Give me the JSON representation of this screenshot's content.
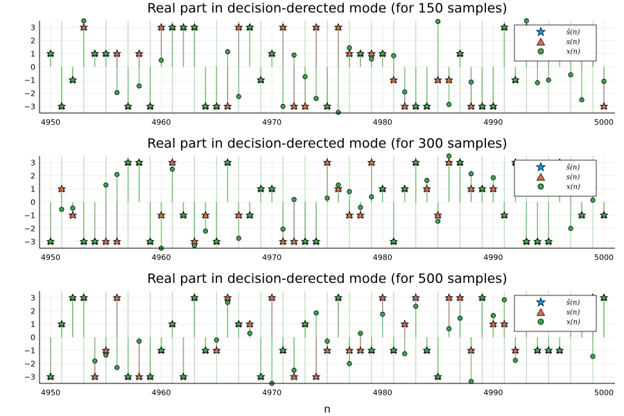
{
  "colors": {
    "s_hat": "#009AFA",
    "s": "#E26F46",
    "x": "#3EA44E",
    "stem_s": "#A08080",
    "stem_x": "#7CBF7C"
  },
  "marker_shapes": {
    "s_hat": "star",
    "s": "triangle",
    "x": "circle"
  },
  "chart_data": [
    {
      "type": "scatter",
      "title": "Real part in decision-derected mode (for 150 samples)",
      "xlabel": "",
      "xlim": [
        4949,
        5001
      ],
      "ylim": [
        -3.5,
        3.5
      ],
      "x_ticks": [
        4950,
        4960,
        4970,
        4980,
        4990,
        5000
      ],
      "x_tick_labels": [
        "4950",
        "4960",
        "4970",
        "4980",
        "4990",
        "5000"
      ],
      "y_ticks": [
        -3,
        -2,
        -1,
        0,
        1,
        2,
        3
      ],
      "y_tick_labels": [
        "−3",
        "−2",
        "−1",
        "0",
        "1",
        "2",
        "3"
      ],
      "grid": true,
      "legend_position": "top-right",
      "legend": [
        "ŝ(n)",
        "s(n)",
        "x(n)"
      ],
      "x": [
        4950,
        4951,
        4952,
        4953,
        4954,
        4955,
        4956,
        4957,
        4958,
        4959,
        4960,
        4961,
        4962,
        4963,
        4964,
        4965,
        4966,
        4967,
        4968,
        4969,
        4970,
        4971,
        4972,
        4973,
        4974,
        4975,
        4976,
        4977,
        4978,
        4979,
        4980,
        4981,
        4982,
        4983,
        4984,
        4985,
        4986,
        4987,
        4988,
        4989,
        4990,
        4991,
        4992,
        4993,
        4994,
        4995,
        4996,
        4997,
        4998,
        4999,
        5000
      ],
      "series": [
        {
          "name": "ŝ(n)",
          "values": [
            1,
            -3,
            -1,
            3,
            1,
            1,
            1,
            -3,
            1,
            -3,
            3,
            3,
            3,
            3,
            -3,
            -3,
            -3,
            3,
            3,
            -1,
            1,
            3,
            -3,
            -3,
            3,
            -3,
            3,
            1,
            1,
            1,
            1,
            -1,
            -3,
            -3,
            -3,
            -1,
            -1,
            1,
            -3,
            -3,
            -3,
            3,
            -1,
            3,
            1,
            1,
            1,
            1,
            1,
            1,
            -3
          ]
        },
        {
          "name": "s(n)",
          "values": [
            1,
            -3,
            -1,
            3,
            1,
            1,
            1,
            -3,
            1,
            -3,
            3,
            3,
            3,
            3,
            -3,
            -3,
            -3,
            3,
            3,
            -1,
            1,
            3,
            -3,
            -3,
            3,
            -3,
            3,
            1,
            1,
            1,
            1,
            -1,
            -3,
            -3,
            -3,
            -1,
            -1,
            1,
            -3,
            -3,
            -3,
            3,
            -1,
            3,
            1,
            1,
            1,
            1,
            1,
            1,
            -3
          ]
        },
        {
          "name": "x(n)",
          "values": [
            1.0,
            -3.0,
            -1.0,
            3.5,
            1.0,
            1.0,
            -1.95,
            -3.0,
            -1.45,
            -3.0,
            0.5,
            3.0,
            3.0,
            3.0,
            -3.0,
            -3.0,
            1.15,
            -2.25,
            3.0,
            -1.0,
            1.0,
            -3.0,
            0.9,
            -0.75,
            -2.4,
            -3.0,
            -3.45,
            1.45,
            1.0,
            0.6,
            1.0,
            0.85,
            -1.9,
            -3.0,
            -3.0,
            3.45,
            -2.85,
            1.0,
            -1.15,
            -3.0,
            -3.0,
            3.0,
            -1.0,
            3.5,
            -1.2,
            -1.0,
            3.0,
            -0.6,
            -2.5,
            1.0,
            -1.1
          ]
        }
      ]
    },
    {
      "type": "scatter",
      "title": "Real part in decision-derected mode (for 300 samples)",
      "xlabel": "",
      "xlim": [
        4949,
        5001
      ],
      "ylim": [
        -3.5,
        3.5
      ],
      "x_ticks": [
        4950,
        4960,
        4970,
        4980,
        4990,
        5000
      ],
      "x_tick_labels": [
        "4950",
        "4960",
        "4970",
        "4980",
        "4990",
        "5000"
      ],
      "y_ticks": [
        -3,
        -2,
        -1,
        0,
        1,
        2,
        3
      ],
      "y_tick_labels": [
        "−3",
        "−2",
        "−1",
        "0",
        "1",
        "2",
        "3"
      ],
      "grid": true,
      "legend_position": "top-right",
      "legend": [
        "ŝ(n)",
        "s(n)",
        "x(n)"
      ],
      "x": [
        4950,
        4951,
        4952,
        4953,
        4954,
        4955,
        4956,
        4957,
        4958,
        4959,
        4960,
        4961,
        4962,
        4963,
        4964,
        4965,
        4966,
        4967,
        4968,
        4969,
        4970,
        4971,
        4972,
        4973,
        4974,
        4975,
        4976,
        4977,
        4978,
        4979,
        4980,
        4981,
        4982,
        4983,
        4984,
        4985,
        4986,
        4987,
        4988,
        4989,
        4990,
        4991,
        4992,
        4993,
        4994,
        4995,
        4996,
        4997,
        4998,
        4999,
        5000
      ],
      "series": [
        {
          "name": "ŝ(n)",
          "values": [
            -3,
            1,
            -1,
            -3,
            -3,
            -3,
            -3,
            3,
            3,
            -3,
            -1,
            3,
            -1,
            -3,
            -1,
            -3,
            3,
            -1,
            -1,
            1,
            1,
            -3,
            -3,
            -3,
            -3,
            3,
            1,
            -1,
            -1,
            3,
            1,
            -3,
            1,
            3,
            1,
            -1,
            3,
            3,
            1,
            1,
            1,
            -1,
            3,
            -3,
            -3,
            -3,
            3,
            1,
            -1,
            1,
            -1
          ]
        },
        {
          "name": "s(n)",
          "values": [
            -3,
            1,
            -1,
            -3,
            -3,
            -3,
            -3,
            3,
            3,
            -3,
            -1,
            3,
            -1,
            -3,
            -1,
            -3,
            3,
            -1,
            -1,
            1,
            1,
            -3,
            -3,
            -3,
            -3,
            3,
            1,
            -1,
            -1,
            3,
            1,
            -3,
            1,
            3,
            1,
            -1,
            3,
            3,
            1,
            1,
            1,
            -1,
            3,
            -3,
            -3,
            -3,
            3,
            1,
            -1,
            1,
            -1
          ]
        },
        {
          "name": "x(n)",
          "values": [
            -3.0,
            -0.55,
            -0.45,
            -3.0,
            -3.0,
            1.3,
            2.1,
            3.0,
            3.0,
            -3.0,
            -3.5,
            2.5,
            -1.0,
            -3.3,
            -2.2,
            -3.0,
            3.0,
            -2.75,
            -1.0,
            1.0,
            1.0,
            -2.05,
            0.2,
            -3.0,
            -3.0,
            0.3,
            1.3,
            0.8,
            -0.4,
            0.4,
            1.0,
            -3.0,
            1.0,
            3.0,
            1.65,
            -1.45,
            3.5,
            3.0,
            2.15,
            1.0,
            1.85,
            -1.0,
            3.0,
            -3.0,
            -3.0,
            -3.0,
            2.5,
            -2.0,
            -1.0,
            0.15,
            -1.0
          ]
        }
      ]
    },
    {
      "type": "scatter",
      "title": "Real part in decision-derected mode (for 500 samples)",
      "xlabel": "n",
      "xlim": [
        4949,
        5001
      ],
      "ylim": [
        -3.5,
        3.5
      ],
      "x_ticks": [
        4950,
        4960,
        4970,
        4980,
        4990,
        5000
      ],
      "x_tick_labels": [
        "4950",
        "4960",
        "4970",
        "4980",
        "4990",
        "5000"
      ],
      "y_ticks": [
        -3,
        -2,
        -1,
        0,
        1,
        2,
        3
      ],
      "y_tick_labels": [
        "−3",
        "−2",
        "−1",
        "0",
        "1",
        "2",
        "3"
      ],
      "grid": true,
      "legend_position": "top-right",
      "legend": [
        "ŝ(n)",
        "s(n)",
        "x(n)"
      ],
      "x": [
        4950,
        4951,
        4952,
        4953,
        4954,
        4955,
        4956,
        4957,
        4958,
        4959,
        4960,
        4961,
        4962,
        4963,
        4964,
        4965,
        4966,
        4967,
        4968,
        4969,
        4970,
        4971,
        4972,
        4973,
        4974,
        4975,
        4976,
        4977,
        4978,
        4979,
        4980,
        4981,
        4982,
        4983,
        4984,
        4985,
        4986,
        4987,
        4988,
        4989,
        4990,
        4991,
        4992,
        4993,
        4994,
        4995,
        4996,
        4997,
        4998,
        4999,
        5000
      ],
      "series": [
        {
          "name": "ŝ(n)",
          "values": [
            -3,
            1,
            3,
            3,
            -3,
            -1,
            3,
            -3,
            -3,
            -3,
            -1,
            1,
            -3,
            3,
            -1,
            -1,
            3,
            1,
            1,
            -3,
            3,
            -1,
            -3,
            1,
            -3,
            -1,
            3,
            -1,
            -1,
            -1,
            3,
            -1,
            1,
            3,
            -1,
            -3,
            3,
            3,
            -1,
            3,
            1,
            1,
            -1,
            1,
            -1,
            -1,
            -1,
            1,
            1,
            3,
            3
          ]
        },
        {
          "name": "s(n)",
          "values": [
            -3,
            1,
            3,
            3,
            -3,
            -1,
            3,
            -3,
            -3,
            -3,
            -1,
            1,
            -3,
            3,
            -1,
            -1,
            3,
            1,
            1,
            -3,
            3,
            -1,
            -3,
            1,
            -3,
            -1,
            3,
            -1,
            -1,
            -1,
            3,
            -1,
            1,
            3,
            -1,
            -3,
            3,
            3,
            -1,
            3,
            1,
            1,
            -1,
            1,
            -1,
            -1,
            -1,
            1,
            1,
            3,
            3
          ]
        },
        {
          "name": "x(n)",
          "values": [
            -3.0,
            1.0,
            3.0,
            3.0,
            -1.8,
            -1.35,
            -2.3,
            -3.0,
            -0.3,
            -3.0,
            -1.0,
            1.0,
            -3.0,
            3.0,
            -1.0,
            -0.2,
            2.65,
            1.0,
            0.3,
            -3.0,
            -3.5,
            -1.0,
            -2.5,
            1.0,
            1.85,
            -0.3,
            3.0,
            -2.0,
            0.3,
            -1.0,
            1.75,
            -1.0,
            -1.25,
            2.35,
            -1.0,
            -3.0,
            0.65,
            1.45,
            -3.35,
            3.0,
            1.65,
            2.85,
            -1.75,
            1.0,
            -1.0,
            -1.0,
            -1.0,
            1.0,
            1.0,
            -1.45,
            3.0
          ]
        }
      ]
    }
  ]
}
